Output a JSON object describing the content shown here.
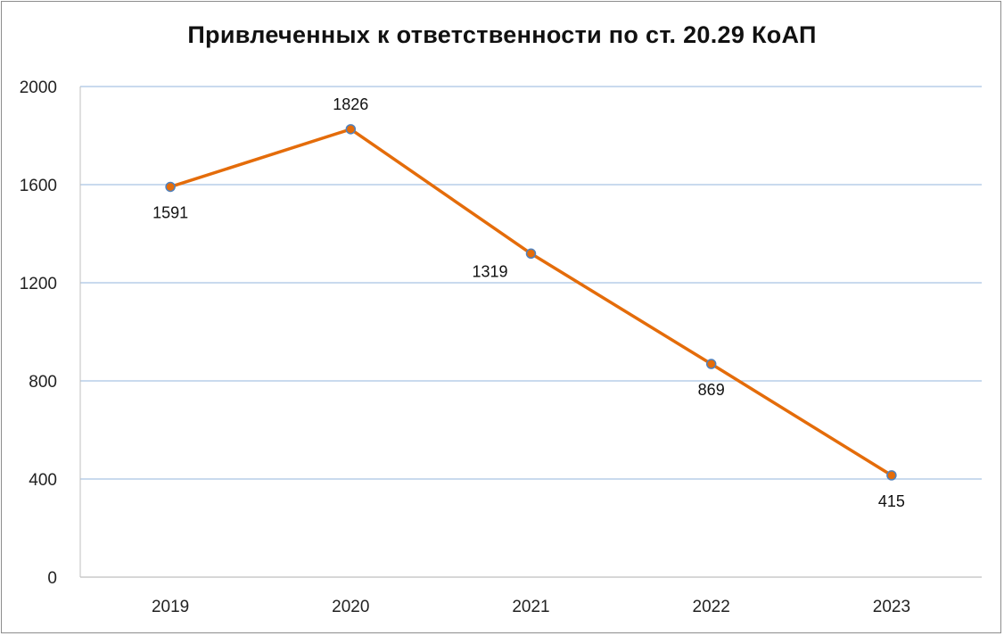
{
  "chart_data": {
    "type": "line",
    "title": "Привлеченных к ответственности по ст. 20.29 КоАП",
    "xlabel": "",
    "ylabel": "",
    "categories": [
      "2019",
      "2020",
      "2021",
      "2022",
      "2023"
    ],
    "series": [
      {
        "name": "Привлеченных к ответственности",
        "values": [
          1591,
          1826,
          1319,
          869,
          415
        ],
        "color": "#E46C0A",
        "marker_edge": "#4F81BD"
      }
    ],
    "data_label_positions": [
      "below",
      "above",
      "left",
      "below",
      "below"
    ],
    "ylim": [
      0,
      2000
    ],
    "yticks": [
      0,
      400,
      800,
      1200,
      1600,
      2000
    ],
    "grid": true,
    "grid_color": "#A9C4E4",
    "legend": "none"
  }
}
